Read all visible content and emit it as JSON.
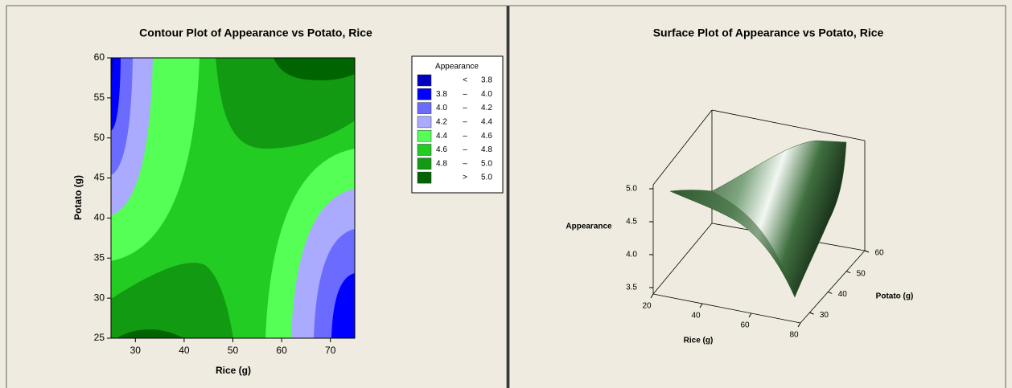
{
  "chart_data": [
    {
      "type": "contour",
      "title": "Contour Plot of Appearance vs Potato, Rice",
      "xlabel": "Rice (g)",
      "ylabel": "Potato (g)",
      "xlim": [
        25,
        75
      ],
      "ylim": [
        25,
        60
      ],
      "xticks": [
        30,
        40,
        50,
        60,
        70
      ],
      "yticks": [
        25,
        30,
        35,
        40,
        45,
        50,
        55,
        60
      ],
      "legend": {
        "title": "Appearance",
        "entries": [
          {
            "sep": "<",
            "high": 3.8,
            "color": "#0000c0"
          },
          {
            "low": 3.8,
            "sep": "–",
            "high": {
              "value": 4,
              "label": "4.0"
            },
            "color": "#0000ff"
          },
          {
            "low": {
              "value": 4,
              "label": "4.0"
            },
            "sep": "–",
            "high": 4.2,
            "color": "#6b6bff"
          },
          {
            "low": 4.2,
            "sep": "–",
            "high": 4.4,
            "color": "#aaaaff"
          },
          {
            "low": 4.4,
            "sep": "–",
            "high": 4.6,
            "color": "#55ff55"
          },
          {
            "low": 4.6,
            "sep": "–",
            "high": 4.8,
            "color": "#22cc22"
          },
          {
            "low": 4.8,
            "sep": "–",
            "high": {
              "value": 5,
              "label": "5.0"
            },
            "color": "#129a12"
          },
          {
            "sep": ">",
            "high": {
              "value": 5,
              "label": "5.0"
            },
            "color": "#006400"
          }
        ]
      }
    },
    {
      "type": "surface",
      "title": "Surface Plot of Appearance vs Potato, Rice",
      "xlabel": "Rice (g)",
      "ylabel": "Potato (g)",
      "zlabel": "Appearance",
      "xlim": [
        20,
        80
      ],
      "xticks": [
        20,
        40,
        60,
        80
      ],
      "ylim": [
        25,
        60
      ],
      "yticks": [
        30,
        40,
        50,
        60
      ],
      "zlim": [
        3.5,
        5
      ],
      "zticks": [
        3.5,
        {
          "value": 4,
          "label": "4.0"
        },
        4.5,
        {
          "value": 5,
          "label": "5.0"
        }
      ],
      "color": "#2f5f2f"
    }
  ]
}
